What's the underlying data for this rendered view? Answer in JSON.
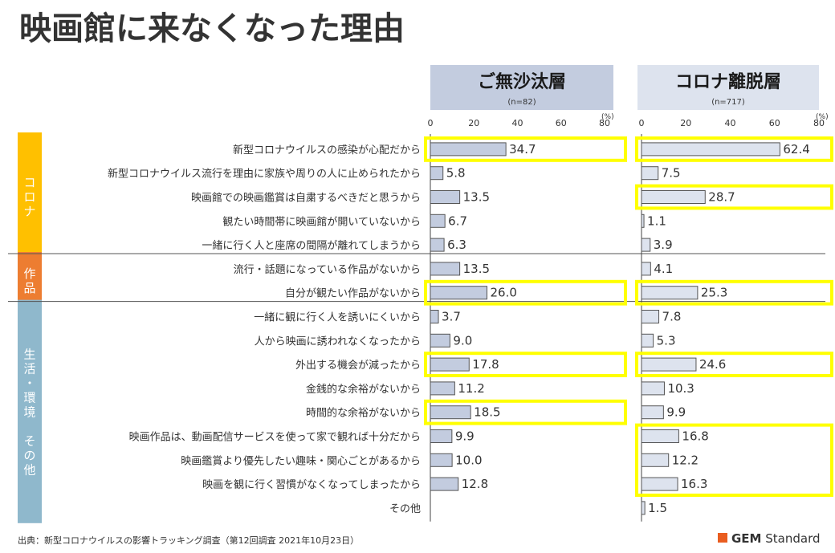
{
  "page": {
    "title": "映画館に来なくなった理由",
    "source": "出典：新型コロナウイルスの影響トラッキング調査（第12回調査 2021年10月23日）",
    "brand_bold": "GEM",
    "brand_rest": " Standard"
  },
  "chart_data": {
    "type": "bar",
    "orientation": "horizontal",
    "axis_unit": "(%)",
    "xlim": [
      0,
      80
    ],
    "ticks": [
      0,
      20,
      40,
      60,
      80
    ],
    "categories": [
      "新型コロナウイルスの感染が心配だから",
      "新型コロナウイルス流行を理由に家族や周りの人に止められたから",
      "映画館での映画鑑賞は自粛するべきだと思うから",
      "観たい時間帯に映画館が開いていないから",
      "一緒に行く人と座席の間隔が離れてしまうから",
      "流行・話題になっている作品がないから",
      "自分が観たい作品がないから",
      "一緒に観に行く人を誘いにくいから",
      "人から映画に誘われなくなったから",
      "外出する機会が減ったから",
      "金銭的な余裕がないから",
      "時間的な余裕がないから",
      "映画作品は、動画配信サービスを使って家で観れば十分だから",
      "映画鑑賞より優先したい趣味・関心ごとがあるから",
      "映画を観に行く習慣がなくなってしまったから",
      "その他"
    ],
    "groups": [
      {
        "label": "コロナ",
        "start": 0,
        "end": 4,
        "color": "#FFC000"
      },
      {
        "label": "作品",
        "start": 5,
        "end": 6,
        "color": "#ED7D31"
      },
      {
        "label": "生活・環境 その他",
        "start": 7,
        "end": 15,
        "color": "#8FB8CC"
      }
    ],
    "series": [
      {
        "name": "ご無沙汰層",
        "n": "(n=82)",
        "header_color": "#C3CCDF",
        "bar_color": "#C3CCDF",
        "values": [
          34.7,
          5.8,
          13.5,
          6.7,
          6.3,
          13.5,
          26.0,
          3.7,
          9.0,
          17.8,
          11.2,
          18.5,
          9.9,
          10.0,
          12.8,
          null
        ],
        "labels": [
          "34.7",
          "5.8",
          "13.5",
          "6.7",
          "6.3",
          "13.5",
          "26.0",
          "3.7",
          "9.0",
          "17.8",
          "11.2",
          "18.5",
          "9.9",
          "10.0",
          "12.8",
          ""
        ],
        "highlight": [
          [
            0,
            0
          ],
          [
            6,
            6
          ],
          [
            9,
            9
          ],
          [
            11,
            11
          ]
        ]
      },
      {
        "name": "コロナ離脱層",
        "n": "(n=717)",
        "header_color": "#DDE3EE",
        "bar_color": "#DDE3EE",
        "values": [
          62.4,
          7.5,
          28.7,
          1.1,
          3.9,
          4.1,
          25.3,
          7.8,
          5.3,
          24.6,
          10.3,
          9.9,
          16.8,
          12.2,
          16.3,
          1.5
        ],
        "labels": [
          "62.4",
          "7.5",
          "28.7",
          "1.1",
          "3.9",
          "4.1",
          "25.3",
          "7.8",
          "5.3",
          "24.6",
          "10.3",
          "9.9",
          "16.8",
          "12.2",
          "16.3",
          "1.5"
        ],
        "highlight": [
          [
            0,
            0
          ],
          [
            2,
            2
          ],
          [
            6,
            6
          ],
          [
            9,
            9
          ],
          [
            12,
            14
          ]
        ]
      }
    ],
    "highlight_color": "#FFFF00",
    "divider_color": "#555555"
  }
}
